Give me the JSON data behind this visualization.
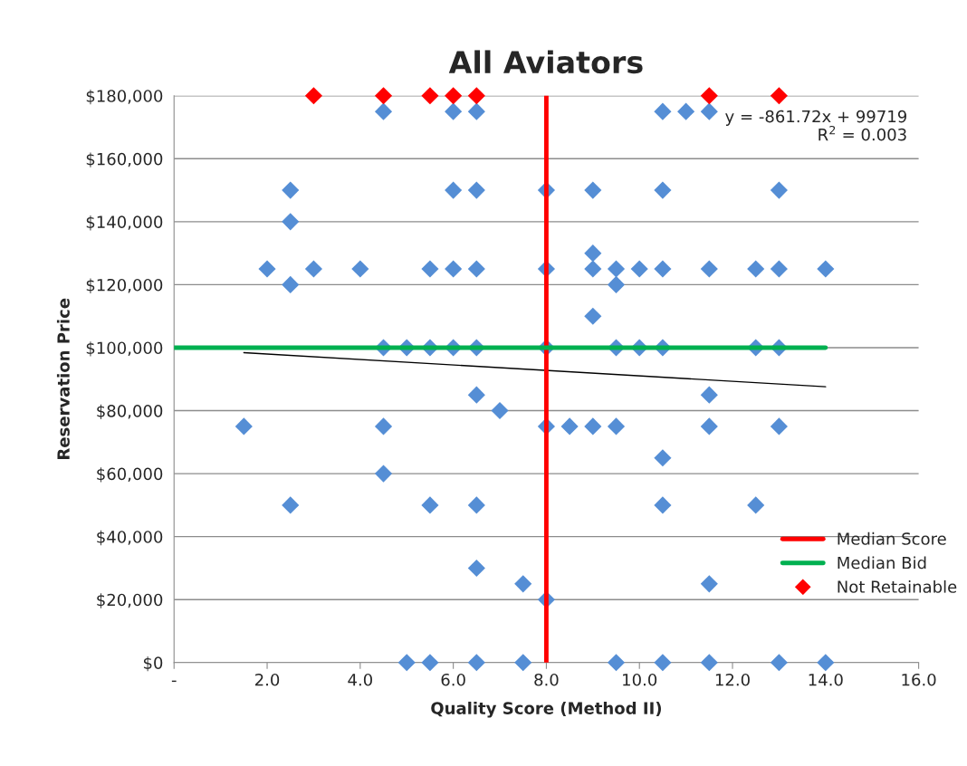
{
  "chart_data": {
    "type": "scatter",
    "title": "All Aviators",
    "xlabel": "Quality Score (Method II)",
    "ylabel": "Reservation Price",
    "annotations": [
      "y = -861.72x + 99719\nR$^{2}$ = 0.003"
    ],
    "xlim": [
      0,
      16
    ],
    "xticks": [
      {
        "value": 0,
        "label": "-"
      },
      {
        "value": 2,
        "label": "2.0"
      },
      {
        "value": 4,
        "label": "4.0"
      },
      {
        "value": 6,
        "label": "6.0"
      },
      {
        "value": 8,
        "label": "8.0"
      },
      {
        "value": 10,
        "label": "10.0"
      },
      {
        "value": 12,
        "label": "12.0"
      },
      {
        "value": 14,
        "label": "14.0"
      },
      {
        "value": 16,
        "label": "16.0"
      }
    ],
    "ylim": [
      0,
      180000
    ],
    "yticks": [
      {
        "value": 0,
        "label": "$0"
      },
      {
        "value": 20000,
        "label": "$20,000"
      },
      {
        "value": 40000,
        "label": "$40,000"
      },
      {
        "value": 60000,
        "label": "$60,000"
      },
      {
        "value": 80000,
        "label": "$80,000"
      },
      {
        "value": 100000,
        "label": "$100,000"
      },
      {
        "value": 120000,
        "label": "$120,000"
      },
      {
        "value": 140000,
        "label": "$140,000"
      },
      {
        "value": 160000,
        "label": "$160,000"
      },
      {
        "value": 180000,
        "label": "$180,000"
      }
    ],
    "grid": "y",
    "legend": "bottom right",
    "series": [
      {
        "marker": "diamond",
        "color": "#558ed5",
        "x": [
          4.5,
          6,
          6.5,
          10.5,
          11,
          11.5,
          2.5,
          6,
          6.5,
          8,
          9,
          10.5,
          13,
          2.5,
          9,
          2,
          3,
          4,
          5.5,
          6,
          6.5,
          8,
          9,
          9.5,
          10,
          10.5,
          11.5,
          12.5,
          13,
          14,
          2.5,
          9.5,
          9,
          4.5,
          5,
          5.5,
          6,
          6.5,
          8,
          9.5,
          10,
          10.5,
          12.5,
          13,
          6.5,
          11.5,
          7,
          1.5,
          4.5,
          8,
          8.5,
          9,
          9.5,
          11.5,
          13,
          10.5,
          4.5,
          2.5,
          5.5,
          6.5,
          10.5,
          12.5,
          6.5,
          7.5,
          11.5,
          8,
          5,
          5.5,
          6.5,
          7.5,
          9.5,
          10.5,
          11.5,
          13,
          14
        ],
        "values": [
          175000,
          175000,
          175000,
          175000,
          175000,
          175000,
          150000,
          150000,
          150000,
          150000,
          150000,
          150000,
          150000,
          140000,
          130000,
          125000,
          125000,
          125000,
          125000,
          125000,
          125000,
          125000,
          125000,
          125000,
          125000,
          125000,
          125000,
          125000,
          125000,
          125000,
          120000,
          120000,
          110000,
          100000,
          100000,
          100000,
          100000,
          100000,
          100000,
          100000,
          100000,
          100000,
          100000,
          100000,
          85000,
          85000,
          80000,
          75000,
          75000,
          75000,
          75000,
          75000,
          75000,
          75000,
          75000,
          65000,
          60000,
          50000,
          50000,
          50000,
          50000,
          50000,
          30000,
          25000,
          25000,
          20000,
          0,
          0,
          0,
          0,
          0,
          0,
          0,
          0,
          0
        ]
      },
      {
        "type": "line",
        "marker": "none",
        "color": "#000000",
        "x": [
          1.5,
          14
        ],
        "values": [
          98400,
          87600
        ]
      },
      {
        "type": "line",
        "marker": "none",
        "name": "Median Score",
        "color": "#ff0000",
        "x": [
          8,
          8
        ],
        "values": [
          0,
          180000
        ]
      },
      {
        "type": "line",
        "marker": "none",
        "name": "Median Bid",
        "color": "#00b050",
        "x": [
          0,
          14
        ],
        "values": [
          100000,
          100000
        ]
      },
      {
        "marker": "diamond",
        "name": "Not Retainable",
        "color": "#ff0000",
        "x": [
          3,
          4.5,
          5.5,
          6,
          6.5,
          11.5,
          13
        ],
        "values": [
          180000,
          180000,
          180000,
          180000,
          180000,
          180000,
          180000
        ]
      }
    ]
  }
}
